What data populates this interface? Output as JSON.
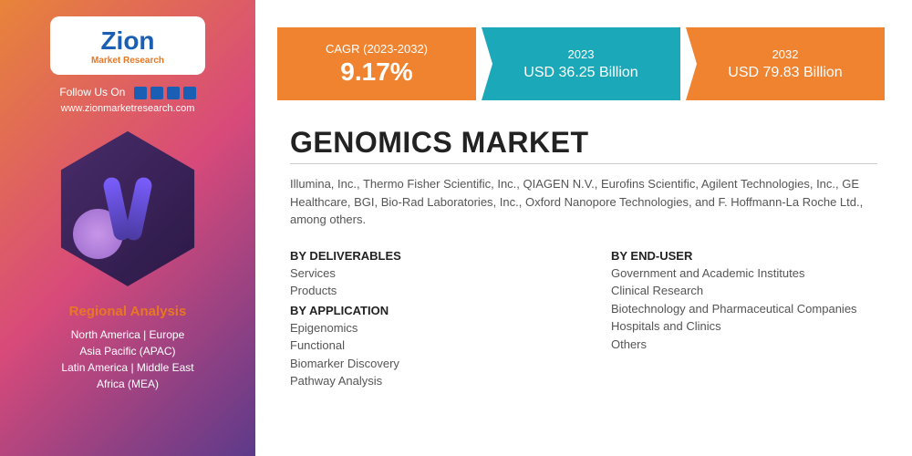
{
  "brand": {
    "name": "Zion",
    "sub": "Market Research",
    "follow_label": "Follow Us On",
    "website": "www.zionmarketresearch.com"
  },
  "regional": {
    "title": "Regional Analysis",
    "line1": "North America | Europe",
    "line2": "Asia Pacific (APAC)",
    "line3": "Latin America | Middle East",
    "line4": "Africa (MEA)"
  },
  "stats": {
    "cagr": {
      "label": "CAGR (2023-2032)",
      "value": "9.17%",
      "bg": "#f08330"
    },
    "year1": {
      "label": "2023",
      "value": "USD 36.25 Billion",
      "bg": "#1ba8b8"
    },
    "year2": {
      "label": "2032",
      "value": "USD 79.83 Billion",
      "bg": "#f08330"
    }
  },
  "title": "GENOMICS MARKET",
  "companies": "Illumina, Inc., Thermo Fisher Scientific, Inc., QIAGEN N.V., Eurofins Scientific, Agilent Technologies, Inc., GE Healthcare, BGI, Bio-Rad Laboratories, Inc., Oxford Nanopore Technologies, and F. Hoffmann-La Roche Ltd., among others.",
  "segments": {
    "deliverables": {
      "head": "BY DELIVERABLES",
      "items": [
        "Services",
        "Products"
      ]
    },
    "application": {
      "head": "BY APPLICATION",
      "items": [
        "Epigenomics",
        "Functional",
        "Biomarker Discovery",
        "Pathway Analysis"
      ]
    },
    "enduser": {
      "head": "BY END-USER",
      "items": [
        "Government and Academic Institutes",
        "Clinical Research",
        "Biotechnology and Pharmaceutical Companies",
        "Hospitals and Clinics",
        "Others"
      ]
    }
  },
  "colors": {
    "orange": "#f08330",
    "teal": "#1ba8b8",
    "sidebar_start": "#e8843a",
    "sidebar_mid": "#d84a7a",
    "sidebar_end": "#5d3a8a",
    "text_dark": "#222222",
    "text_body": "#555555"
  }
}
